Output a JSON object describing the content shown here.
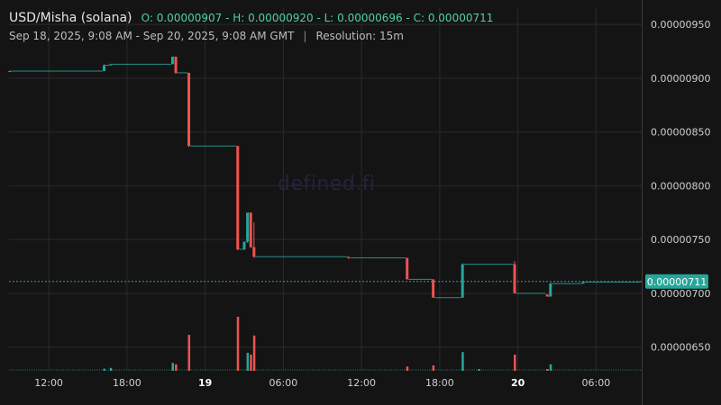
{
  "header": {
    "symbol": "USD/Misha (solana)",
    "ohlc": "O: 0.00000907 - H: 0.00000920 - L: 0.00000696 - C: 0.00000711",
    "range": "Sep 18, 2025, 9:08 AM - Sep 20, 2025, 9:08 AM GMT",
    "separator": "|",
    "resolution": "Resolution: 15m"
  },
  "watermark": "defined.fi",
  "colors": {
    "up": "#26a69a",
    "down": "#ef5350",
    "background": "#141414",
    "grid": "#2a2a2a",
    "price_tag": "#26a69a"
  },
  "chart_data": {
    "type": "candlestick",
    "ylim": [
      6.28e-06,
      9.66e-06
    ],
    "y_ticks": [
      "0.00000650",
      "0.00000700",
      "0.00000750",
      "0.00000800",
      "0.00000850",
      "0.00000900",
      "0.00000950"
    ],
    "x_ticks": [
      {
        "label": "12:00",
        "hour": 12,
        "bold": false
      },
      {
        "label": "18:00",
        "hour": 18,
        "bold": false
      },
      {
        "label": "19",
        "hour": 24,
        "bold": true
      },
      {
        "label": "06:00",
        "hour": 30,
        "bold": false
      },
      {
        "label": "12:00",
        "hour": 36,
        "bold": false
      },
      {
        "label": "18:00",
        "hour": 42,
        "bold": false
      },
      {
        "label": "20",
        "hour": 48,
        "bold": true
      },
      {
        "label": "06:00",
        "hour": 54,
        "bold": false
      }
    ],
    "x_range_hours": [
      8.95,
      57.5
    ],
    "last_price": "0.00000711",
    "candles": [
      {
        "t": 9.0,
        "o": 9.065e-06,
        "h": 9.07e-06,
        "l": 9.06e-06,
        "c": 9.066e-06
      },
      {
        "t": 16.25,
        "o": 9.066e-06,
        "h": 9.13e-06,
        "l": 9.066e-06,
        "c": 9.12e-06
      },
      {
        "t": 16.75,
        "o": 9.12e-06,
        "h": 9.135e-06,
        "l": 9.12e-06,
        "c": 9.13e-06
      },
      {
        "t": 21.5,
        "o": 9.13e-06,
        "h": 9.2e-06,
        "l": 9.13e-06,
        "c": 9.2e-06
      },
      {
        "t": 21.75,
        "o": 9.2e-06,
        "h": 9.2e-06,
        "l": 9.04e-06,
        "c": 9.05e-06
      },
      {
        "t": 22.75,
        "o": 9.05e-06,
        "h": 9.05e-06,
        "l": 8.36e-06,
        "c": 8.37e-06
      },
      {
        "t": 26.5,
        "o": 8.37e-06,
        "h": 8.37e-06,
        "l": 7.4e-06,
        "c": 7.41e-06
      },
      {
        "t": 27.0,
        "o": 7.41e-06,
        "h": 7.48e-06,
        "l": 7.4e-06,
        "c": 7.48e-06
      },
      {
        "t": 27.25,
        "o": 7.48e-06,
        "h": 7.75e-06,
        "l": 7.47e-06,
        "c": 7.75e-06
      },
      {
        "t": 27.5,
        "o": 7.75e-06,
        "h": 7.75e-06,
        "l": 7.42e-06,
        "c": 7.43e-06
      },
      {
        "t": 27.75,
        "o": 7.43e-06,
        "h": 7.66e-06,
        "l": 7.33e-06,
        "c": 7.34e-06
      },
      {
        "t": 35.0,
        "o": 7.34e-06,
        "h": 7.34e-06,
        "l": 7.32e-06,
        "c": 7.33e-06
      },
      {
        "t": 39.5,
        "o": 7.33e-06,
        "h": 7.33e-06,
        "l": 7.13e-06,
        "c": 7.13e-06
      },
      {
        "t": 41.5,
        "o": 7.13e-06,
        "h": 7.13e-06,
        "l": 6.96e-06,
        "c": 6.96e-06
      },
      {
        "t": 43.75,
        "o": 6.96e-06,
        "h": 7.28e-06,
        "l": 6.96e-06,
        "c": 7.27e-06
      },
      {
        "t": 47.75,
        "o": 7.27e-06,
        "h": 7.3e-06,
        "l": 7e-06,
        "c": 7e-06
      },
      {
        "t": 50.25,
        "o": 6.99e-06,
        "h": 6.99e-06,
        "l": 6.97e-06,
        "c": 6.97e-06
      },
      {
        "t": 50.5,
        "o": 6.97e-06,
        "h": 7.1e-06,
        "l": 6.97e-06,
        "c": 7.09e-06
      },
      {
        "t": 53.0,
        "o": 7.09e-06,
        "h": 7.11e-06,
        "l": 7.09e-06,
        "c": 7.105e-06
      },
      {
        "t": 57.3,
        "o": 7.105e-06,
        "h": 7.11e-06,
        "l": 7.105e-06,
        "c": 7.11e-06
      }
    ],
    "volume": [
      {
        "t": 16.25,
        "v": 0.06,
        "up": true
      },
      {
        "t": 16.75,
        "v": 0.08,
        "up": true
      },
      {
        "t": 21.5,
        "v": 0.22,
        "up": true
      },
      {
        "t": 21.75,
        "v": 0.18,
        "up": false
      },
      {
        "t": 22.75,
        "v": 1.0,
        "up": false
      },
      {
        "t": 26.5,
        "v": 1.5,
        "up": false
      },
      {
        "t": 27.25,
        "v": 0.5,
        "up": true
      },
      {
        "t": 27.5,
        "v": 0.45,
        "up": false
      },
      {
        "t": 27.75,
        "v": 0.98,
        "up": false
      },
      {
        "t": 39.5,
        "v": 0.12,
        "up": false
      },
      {
        "t": 41.5,
        "v": 0.15,
        "up": false
      },
      {
        "t": 43.75,
        "v": 0.52,
        "up": true
      },
      {
        "t": 45.0,
        "v": 0.05,
        "up": true
      },
      {
        "t": 47.75,
        "v": 0.45,
        "up": false
      },
      {
        "t": 50.25,
        "v": 0.05,
        "up": false
      },
      {
        "t": 50.5,
        "v": 0.18,
        "up": true
      }
    ]
  }
}
